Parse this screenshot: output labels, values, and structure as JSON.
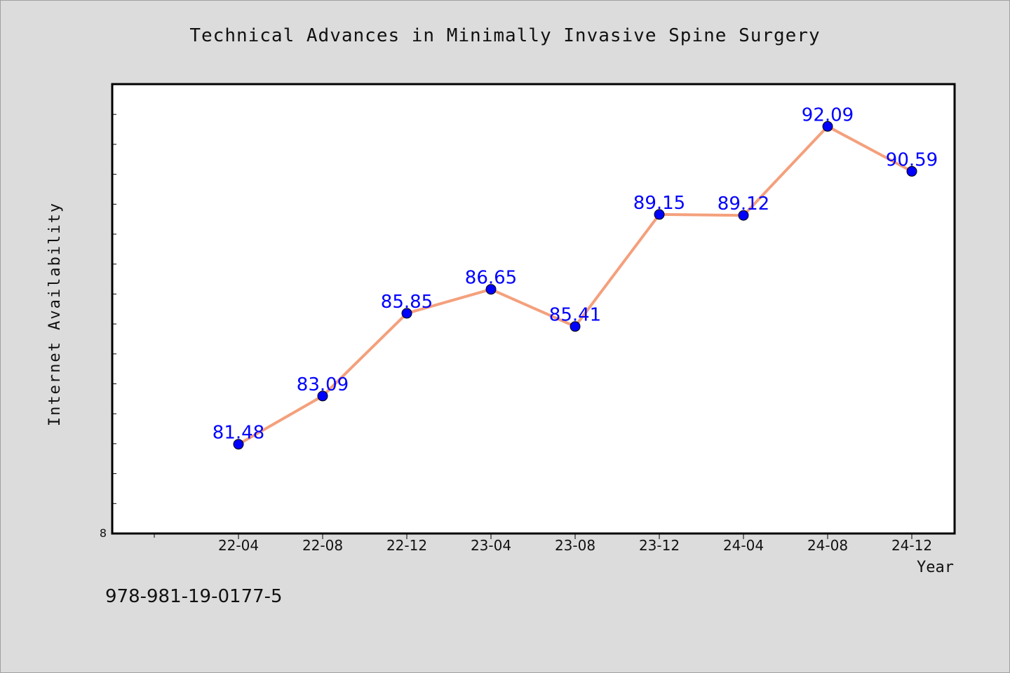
{
  "chart_data": {
    "type": "line",
    "title": "Technical Advances in Minimally Invasive Spine Surgery",
    "xlabel": "Year",
    "ylabel": "Internet Availability",
    "categories": [
      "22-04",
      "22-08",
      "22-12",
      "23-04",
      "23-08",
      "23-12",
      "24-04",
      "24-08",
      "24-12"
    ],
    "series": [
      {
        "values": [
          81.48,
          83.09,
          85.85,
          86.65,
          85.41,
          89.15,
          89.12,
          92.09,
          90.59
        ],
        "labels": [
          "81.48",
          "83.09",
          "85.85",
          "86.65",
          "85.41",
          "89.15",
          "89.12",
          "92.09",
          "90.59"
        ]
      }
    ],
    "y_tick_label": "8",
    "ylim": [
      78.5,
      93.5
    ],
    "grid": false,
    "line_color": "#f4a07c",
    "marker_color": "#0000ff",
    "label_color": "#0000ff"
  },
  "footer": {
    "isbn": "978-981-19-0177-5"
  }
}
